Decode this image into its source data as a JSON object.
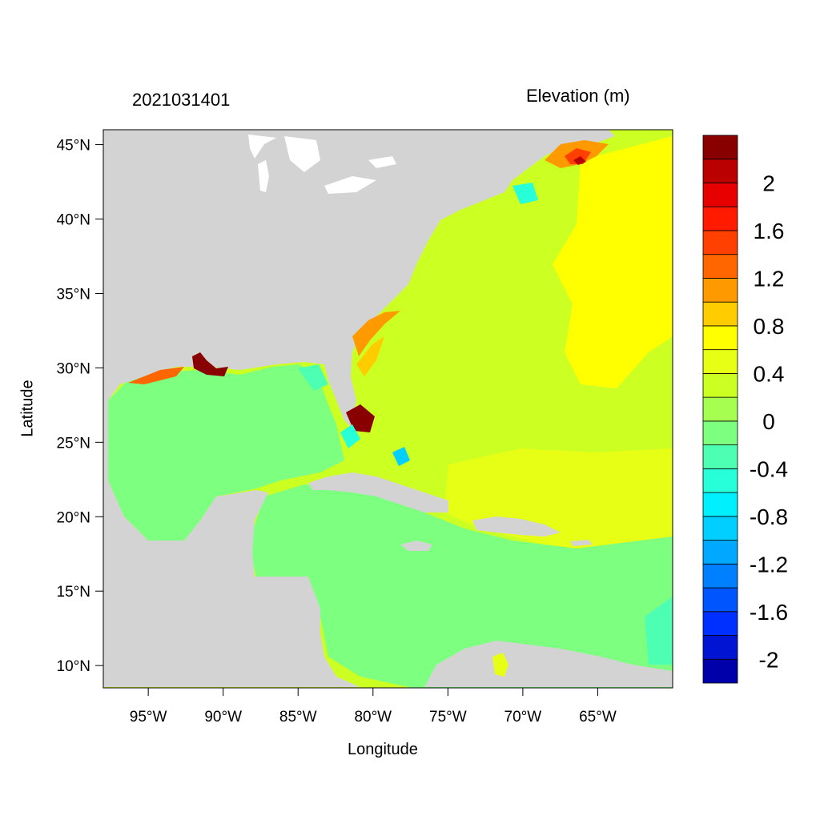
{
  "title_left": "2021031401",
  "title_right": "Elevation (m)",
  "xlabel": "Longitude",
  "ylabel": "Latitude",
  "map": {
    "lon_range": [
      -98,
      -60
    ],
    "lat_range": [
      8.5,
      46
    ],
    "x_ticks": [
      {
        "lon": -95,
        "label": "95°W"
      },
      {
        "lon": -90,
        "label": "90°W"
      },
      {
        "lon": -85,
        "label": "85°W"
      },
      {
        "lon": -80,
        "label": "80°W"
      },
      {
        "lon": -75,
        "label": "75°W"
      },
      {
        "lon": -70,
        "label": "70°W"
      },
      {
        "lon": -65,
        "label": "65°W"
      }
    ],
    "y_ticks": [
      {
        "lat": 45,
        "label": "45°N"
      },
      {
        "lat": 40,
        "label": "40°N"
      },
      {
        "lat": 35,
        "label": "35°N"
      },
      {
        "lat": 30,
        "label": "30°N"
      },
      {
        "lat": 25,
        "label": "25°N"
      },
      {
        "lat": 20,
        "label": "20°N"
      },
      {
        "lat": 15,
        "label": "15°N"
      },
      {
        "lat": 10,
        "label": "10°N"
      }
    ],
    "land_color": "#d3d3d3",
    "lake_color": "#ffffff"
  },
  "colorbar": {
    "colors": [
      "#0000aa",
      "#0015d4",
      "#0030ff",
      "#0055ff",
      "#0080ff",
      "#00a8ff",
      "#00cfff",
      "#00f0ff",
      "#27ffd8",
      "#4dffb2",
      "#7dff80",
      "#a6ff50",
      "#ccff22",
      "#e6ff15",
      "#ffff00",
      "#ffcc00",
      "#ff9900",
      "#ff6600",
      "#ff4000",
      "#ff1a00",
      "#e60000",
      "#bb0000",
      "#880000"
    ],
    "labels": [
      "-2",
      "-1.6",
      "-1.2",
      "-0.8",
      "-0.4",
      "0",
      "0.4",
      "0.8",
      "1.2",
      "1.6",
      "2"
    ]
  }
}
